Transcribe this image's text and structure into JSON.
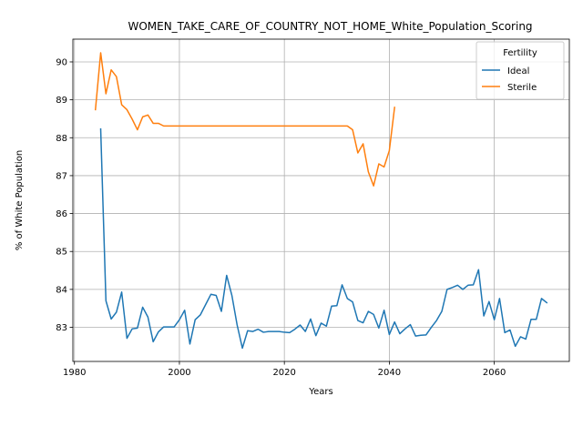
{
  "chart_data": {
    "type": "line",
    "title": "WOMEN_TAKE_CARE_OF_COUNTRY_NOT_HOME_White_Population_Scoring",
    "xlabel": "Years",
    "ylabel": "% of White Population",
    "xlim": [
      1979.7,
      2074.3
    ],
    "ylim": [
      82.1,
      90.6
    ],
    "xticks": [
      1980,
      2000,
      2020,
      2040,
      2060
    ],
    "yticks": [
      83,
      84,
      85,
      86,
      87,
      88,
      89,
      90
    ],
    "grid": true,
    "legend": {
      "title": "Fertility",
      "placement": "top-right"
    },
    "series": [
      {
        "name": "Ideal",
        "color": "#1f77b4",
        "x": [
          1985,
          1986,
          1987,
          1988,
          1989,
          1990,
          1991,
          1992,
          1993,
          1994,
          1995,
          1996,
          1997,
          1998,
          1999,
          2000,
          2001,
          2002,
          2003,
          2004,
          2005,
          2006,
          2007,
          2008,
          2009,
          2010,
          2011,
          2012,
          2013,
          2014,
          2015,
          2016,
          2017,
          2018,
          2019,
          2020,
          2021,
          2022,
          2023,
          2024,
          2025,
          2026,
          2027,
          2028,
          2029,
          2030,
          2031,
          2032,
          2033,
          2034,
          2035,
          2036,
          2037,
          2038,
          2039,
          2040,
          2041,
          2042,
          2043,
          2044,
          2045,
          2046,
          2047,
          2048,
          2049,
          2050,
          2051,
          2052,
          2053,
          2054,
          2055,
          2056,
          2057,
          2058,
          2059,
          2060,
          2061,
          2062,
          2063,
          2064,
          2065,
          2066,
          2067,
          2068,
          2069,
          2070
        ],
        "values": [
          88.23,
          83.7,
          83.22,
          83.4,
          83.93,
          82.71,
          82.96,
          82.98,
          83.53,
          83.27,
          82.62,
          82.88,
          83.01,
          83.01,
          83.01,
          83.2,
          83.45,
          82.56,
          83.2,
          83.33,
          83.6,
          83.87,
          83.84,
          83.42,
          84.37,
          83.84,
          83.06,
          82.45,
          82.91,
          82.89,
          82.95,
          82.87,
          82.89,
          82.89,
          82.89,
          82.87,
          82.86,
          82.95,
          83.06,
          82.89,
          83.22,
          82.78,
          83.11,
          83.03,
          83.56,
          83.57,
          84.12,
          83.76,
          83.67,
          83.18,
          83.12,
          83.42,
          83.34,
          82.98,
          83.45,
          82.81,
          83.14,
          82.83,
          82.96,
          83.07,
          82.77,
          82.79,
          82.8,
          83.0,
          83.18,
          83.42,
          84.0,
          84.05,
          84.11,
          84.0,
          84.11,
          84.12,
          84.52,
          83.3,
          83.68,
          83.2,
          83.76,
          82.86,
          82.93,
          82.5,
          82.75,
          82.69,
          83.21,
          83.21,
          83.76,
          83.65
        ]
      },
      {
        "name": "Sterile",
        "color": "#ff7f0e",
        "x": [
          1984,
          1985,
          1986,
          1987,
          1988,
          1989,
          1990,
          1991,
          1992,
          1993,
          1994,
          1995,
          1996,
          1997,
          1998,
          1999,
          2000,
          2001,
          2002,
          2003,
          2004,
          2005,
          2006,
          2007,
          2008,
          2009,
          2010,
          2011,
          2012,
          2013,
          2014,
          2015,
          2016,
          2017,
          2018,
          2019,
          2020,
          2021,
          2022,
          2023,
          2024,
          2025,
          2026,
          2027,
          2028,
          2029,
          2030,
          2031,
          2032,
          2033,
          2034,
          2035,
          2036,
          2037,
          2038,
          2039,
          2040,
          2041
        ],
        "values": [
          88.74,
          90.24,
          89.16,
          89.79,
          89.61,
          88.87,
          88.74,
          88.49,
          88.21,
          88.55,
          88.6,
          88.38,
          88.38,
          88.31,
          88.31,
          88.31,
          88.31,
          88.31,
          88.31,
          88.31,
          88.31,
          88.31,
          88.31,
          88.31,
          88.31,
          88.31,
          88.31,
          88.31,
          88.31,
          88.31,
          88.31,
          88.31,
          88.31,
          88.31,
          88.31,
          88.31,
          88.31,
          88.31,
          88.31,
          88.31,
          88.31,
          88.31,
          88.31,
          88.31,
          88.31,
          88.31,
          88.31,
          88.31,
          88.31,
          88.21,
          87.6,
          87.84,
          87.1,
          86.73,
          87.31,
          87.23,
          87.66,
          88.8
        ]
      }
    ]
  }
}
